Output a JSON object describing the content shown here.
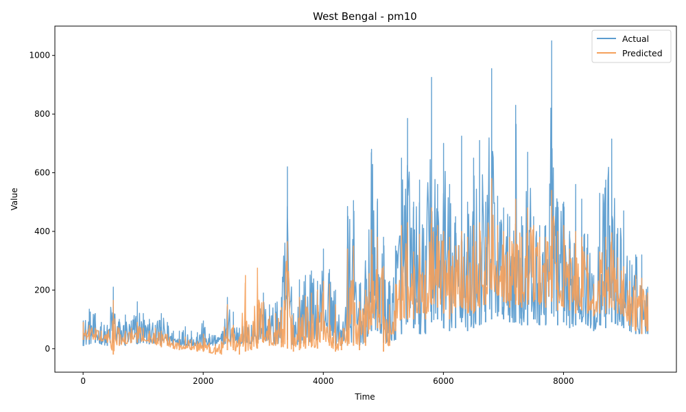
{
  "chart_data": {
    "type": "line",
    "title": "West Bengal - pm10",
    "xlabel": "Time",
    "ylabel": "Value",
    "xlim": [
      -470,
      9880
    ],
    "ylim": [
      -80,
      1100
    ],
    "xticks": [
      0,
      2000,
      4000,
      6000,
      8000
    ],
    "yticks": [
      0,
      200,
      400,
      600,
      800,
      1000
    ],
    "grid": false,
    "legend_position": "top-right",
    "x_samples": [
      0,
      100,
      200,
      300,
      400,
      500,
      600,
      700,
      800,
      900,
      1000,
      1100,
      1200,
      1300,
      1400,
      1500,
      1600,
      1700,
      1800,
      1900,
      2000,
      2100,
      2200,
      2300,
      2400,
      2500,
      2600,
      2700,
      2800,
      2900,
      3000,
      3100,
      3200,
      3300,
      3400,
      3500,
      3600,
      3700,
      3800,
      3900,
      4000,
      4100,
      4200,
      4300,
      4400,
      4500,
      4600,
      4700,
      4800,
      4900,
      5000,
      5100,
      5200,
      5300,
      5400,
      5500,
      5600,
      5700,
      5800,
      5900,
      6000,
      6100,
      6200,
      6300,
      6400,
      6500,
      6600,
      6700,
      6800,
      6900,
      7000,
      7100,
      7200,
      7300,
      7400,
      7500,
      7600,
      7700,
      7800,
      7900,
      8000,
      8100,
      8200,
      8300,
      8400,
      8500,
      8600,
      8700,
      8800,
      8900,
      9000,
      9100,
      9200,
      9300,
      9400
    ],
    "series": [
      {
        "name": "Actual",
        "color": "#5b9ccf",
        "max": [
          95,
          135,
          120,
          90,
          80,
          210,
          100,
          115,
          95,
          160,
          120,
          100,
          80,
          120,
          90,
          60,
          60,
          75,
          60,
          55,
          95,
          50,
          45,
          50,
          175,
          125,
          70,
          90,
          80,
          150,
          190,
          150,
          155,
          175,
          620,
          120,
          235,
          250,
          265,
          230,
          340,
          270,
          200,
          60,
          485,
          505,
          220,
          300,
          680,
          510,
          380,
          230,
          350,
          650,
          785,
          500,
          575,
          350,
          925,
          560,
          700,
          560,
          450,
          725,
          500,
          650,
          710,
          500,
          955,
          520,
          480,
          450,
          830,
          450,
          670,
          450,
          420,
          420,
          1050,
          500,
          500,
          400,
          560,
          510,
          390,
          250,
          530,
          575,
          715,
          410,
          470,
          300,
          320,
          320,
          210
        ],
        "min": [
          10,
          15,
          20,
          15,
          10,
          20,
          15,
          10,
          20,
          15,
          20,
          15,
          20,
          10,
          15,
          10,
          10,
          10,
          10,
          10,
          5,
          10,
          10,
          15,
          15,
          20,
          15,
          20,
          15,
          20,
          30,
          20,
          15,
          20,
          30,
          10,
          15,
          20,
          25,
          30,
          50,
          40,
          10,
          10,
          15,
          20,
          10,
          20,
          60,
          60,
          20,
          20,
          30,
          50,
          90,
          70,
          50,
          50,
          90,
          100,
          70,
          60,
          70,
          90,
          60,
          70,
          80,
          90,
          100,
          110,
          100,
          90,
          90,
          80,
          80,
          100,
          80,
          80,
          120,
          80,
          90,
          70,
          80,
          90,
          80,
          60,
          80,
          70,
          90,
          80,
          70,
          60,
          50,
          50,
          50
        ]
      },
      {
        "name": "Predicted",
        "color": "#f5a05a",
        "max": [
          90,
          80,
          70,
          60,
          50,
          165,
          70,
          60,
          70,
          90,
          70,
          60,
          70,
          60,
          50,
          30,
          30,
          40,
          30,
          25,
          50,
          20,
          15,
          25,
          150,
          80,
          40,
          250,
          40,
          275,
          160,
          110,
          120,
          140,
          365,
          80,
          175,
          180,
          190,
          200,
          230,
          220,
          150,
          30,
          340,
          350,
          160,
          200,
          405,
          380,
          280,
          150,
          220,
          420,
          430,
          330,
          390,
          300,
          480,
          420,
          400,
          380,
          350,
          400,
          380,
          420,
          430,
          380,
          580,
          420,
          400,
          380,
          510,
          380,
          480,
          420,
          380,
          380,
          540,
          400,
          420,
          340,
          400,
          380,
          320,
          220,
          330,
          380,
          395,
          310,
          280,
          230,
          250,
          240,
          190
        ],
        "min": [
          30,
          30,
          30,
          25,
          20,
          -20,
          10,
          15,
          20,
          20,
          25,
          20,
          15,
          5,
          10,
          0,
          -5,
          0,
          -5,
          -10,
          -10,
          -15,
          -20,
          -20,
          -5,
          -5,
          -20,
          -10,
          -5,
          0,
          20,
          10,
          10,
          5,
          0,
          -10,
          -5,
          0,
          5,
          0,
          30,
          10,
          -10,
          -5,
          10,
          10,
          -5,
          10,
          80,
          70,
          -10,
          10,
          60,
          100,
          100,
          100,
          120,
          100,
          150,
          140,
          120,
          100,
          140,
          140,
          120,
          120,
          140,
          150,
          200,
          180,
          160,
          140,
          150,
          140,
          150,
          160,
          150,
          140,
          160,
          130,
          140,
          130,
          120,
          130,
          120,
          110,
          120,
          120,
          140,
          120,
          110,
          80,
          60,
          50,
          60
        ]
      }
    ]
  }
}
